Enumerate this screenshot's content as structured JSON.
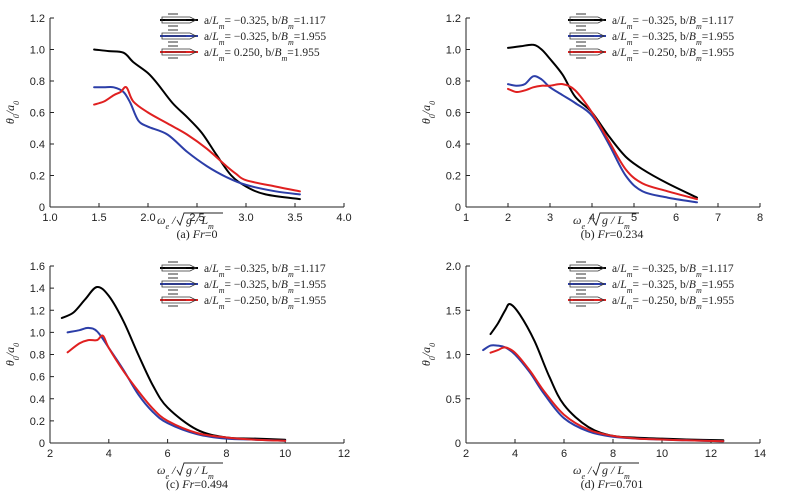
{
  "chart_data": [
    {
      "type": "line",
      "caption": "(a) Fr=0",
      "xlabel": "ω_e / √(g / L_m)",
      "ylabel": "θ_0 / a_0",
      "xlim": [
        1.0,
        4.0
      ],
      "ylim": [
        0.0,
        1.2
      ],
      "xticks": [
        "1.0",
        "1.5",
        "2.0",
        "2.5",
        "3.0",
        "3.5",
        "4.0"
      ],
      "yticks": [
        "0",
        "0.2",
        "0.4",
        "0.6",
        "0.8",
        "1.0",
        "1.2"
      ],
      "legend_position": "top-right",
      "series": [
        {
          "name": "a/L_m= −0.325, b/B_m=1.117",
          "color": "#000000",
          "x": [
            1.45,
            1.6,
            1.75,
            1.85,
            2.0,
            2.1,
            2.25,
            2.4,
            2.55,
            2.7,
            2.85,
            3.0,
            3.2,
            3.55
          ],
          "y": [
            1.0,
            0.99,
            0.98,
            0.92,
            0.85,
            0.78,
            0.66,
            0.57,
            0.47,
            0.33,
            0.2,
            0.13,
            0.08,
            0.05
          ]
        },
        {
          "name": "a/L_m= −0.325, b/B_m=1.955",
          "color": "#2c3ea8",
          "x": [
            1.45,
            1.55,
            1.65,
            1.75,
            1.82,
            1.9,
            2.0,
            2.2,
            2.4,
            2.6,
            2.8,
            3.0,
            3.3,
            3.55
          ],
          "y": [
            0.76,
            0.76,
            0.76,
            0.73,
            0.66,
            0.55,
            0.51,
            0.46,
            0.35,
            0.26,
            0.19,
            0.14,
            0.1,
            0.08
          ]
        },
        {
          "name": "a/L_m= 0.250, b/B_m=1.955",
          "color": "#e02020",
          "x": [
            1.45,
            1.55,
            1.65,
            1.72,
            1.78,
            1.85,
            2.0,
            2.2,
            2.4,
            2.6,
            2.8,
            2.9,
            3.0,
            3.3,
            3.55
          ],
          "y": [
            0.65,
            0.67,
            0.71,
            0.73,
            0.76,
            0.67,
            0.6,
            0.53,
            0.46,
            0.37,
            0.26,
            0.21,
            0.17,
            0.13,
            0.1
          ]
        }
      ]
    },
    {
      "type": "line",
      "caption": "(b) Fr=0.234",
      "xlabel": "ω_e / √(g / L_m)",
      "ylabel": "θ_0 / a_0",
      "xlim": [
        1,
        8
      ],
      "ylim": [
        0.0,
        1.2
      ],
      "xticks": [
        "1",
        "2",
        "3",
        "4",
        "5",
        "6",
        "7",
        "8"
      ],
      "yticks": [
        "0",
        "0.2",
        "0.4",
        "0.6",
        "0.8",
        "1.0",
        "1.2"
      ],
      "legend_position": "top-right",
      "series": [
        {
          "name": "a/L_m= −0.325, b/B_m=1.117",
          "color": "#000000",
          "x": [
            2.0,
            2.3,
            2.6,
            2.8,
            3.0,
            3.3,
            3.6,
            4.0,
            4.4,
            4.8,
            5.2,
            5.8,
            6.5
          ],
          "y": [
            1.01,
            1.02,
            1.03,
            1.0,
            0.94,
            0.84,
            0.7,
            0.6,
            0.45,
            0.32,
            0.24,
            0.15,
            0.06
          ]
        },
        {
          "name": "a/L_m= −0.325, b/B_m=1.955",
          "color": "#2c3ea8",
          "x": [
            2.0,
            2.2,
            2.4,
            2.6,
            2.8,
            3.0,
            3.3,
            3.6,
            4.0,
            4.4,
            4.8,
            5.2,
            5.8,
            6.5
          ],
          "y": [
            0.78,
            0.77,
            0.78,
            0.83,
            0.81,
            0.76,
            0.71,
            0.66,
            0.58,
            0.4,
            0.2,
            0.1,
            0.06,
            0.03
          ]
        },
        {
          "name": "a/L_m= −0.250, b/B_m=1.955",
          "color": "#e02020",
          "x": [
            2.0,
            2.2,
            2.4,
            2.6,
            2.8,
            3.0,
            3.3,
            3.6,
            4.0,
            4.4,
            4.8,
            5.2,
            5.8,
            6.5
          ],
          "y": [
            0.75,
            0.73,
            0.74,
            0.76,
            0.77,
            0.77,
            0.78,
            0.74,
            0.6,
            0.42,
            0.24,
            0.15,
            0.1,
            0.05
          ]
        }
      ]
    },
    {
      "type": "line",
      "caption": "(c) Fr=0.494",
      "xlabel": "ω_e / √(g / L_m)",
      "ylabel": "θ_0 / a_0",
      "xlim": [
        2,
        12
      ],
      "ylim": [
        0.0,
        1.6
      ],
      "xticks": [
        "2",
        "4",
        "6",
        "8",
        "10",
        "12"
      ],
      "yticks": [
        "0",
        "0.2",
        "0.4",
        "0.6",
        "0.8",
        "1.0",
        "1.2",
        "1.4",
        "1.6"
      ],
      "legend_position": "top-right",
      "series": [
        {
          "name": "a/L_m= −0.325, b/B_m=1.117",
          "color": "#000000",
          "x": [
            2.4,
            2.8,
            3.2,
            3.6,
            4.0,
            4.5,
            5.0,
            5.5,
            6.0,
            7.0,
            8.0,
            9.0,
            10.0
          ],
          "y": [
            1.13,
            1.18,
            1.3,
            1.41,
            1.33,
            1.1,
            0.8,
            0.52,
            0.32,
            0.12,
            0.05,
            0.04,
            0.03
          ]
        },
        {
          "name": "a/L_m= −0.325, b/B_m=1.955",
          "color": "#2c3ea8",
          "x": [
            2.6,
            3.0,
            3.3,
            3.6,
            4.0,
            4.5,
            5.0,
            5.5,
            6.0,
            7.0,
            8.0,
            9.0,
            10.0
          ],
          "y": [
            1.0,
            1.02,
            1.04,
            1.01,
            0.86,
            0.66,
            0.44,
            0.28,
            0.18,
            0.08,
            0.04,
            0.03,
            0.02
          ]
        },
        {
          "name": "a/L_m= −0.250, b/B_m=1.955",
          "color": "#e02020",
          "x": [
            2.6,
            3.0,
            3.3,
            3.6,
            3.8,
            4.0,
            4.5,
            5.0,
            5.5,
            6.0,
            7.0,
            8.0,
            9.0,
            10.0
          ],
          "y": [
            0.82,
            0.9,
            0.93,
            0.93,
            0.97,
            0.86,
            0.65,
            0.47,
            0.31,
            0.2,
            0.09,
            0.05,
            0.03,
            0.02
          ]
        }
      ]
    },
    {
      "type": "line",
      "caption": "(d) Fr=0.701",
      "xlabel": "ω_e / √(g / L_m)",
      "ylabel": "θ_0 / a_0",
      "xlim": [
        2,
        14
      ],
      "ylim": [
        0.0,
        2.0
      ],
      "xticks": [
        "2",
        "4",
        "6",
        "8",
        "10",
        "12",
        "14"
      ],
      "yticks": [
        "0",
        "0.5",
        "1.0",
        "1.5",
        "2.0"
      ],
      "legend_position": "top-right",
      "series": [
        {
          "name": "a/L_m= −0.325, b/B_m=1.117",
          "color": "#000000",
          "x": [
            3.0,
            3.3,
            3.6,
            3.8,
            4.2,
            4.8,
            5.4,
            6.0,
            7.0,
            8.0,
            9.0,
            10.0,
            11.0,
            12.5
          ],
          "y": [
            1.23,
            1.35,
            1.5,
            1.57,
            1.45,
            1.15,
            0.75,
            0.43,
            0.18,
            0.08,
            0.06,
            0.05,
            0.04,
            0.03
          ]
        },
        {
          "name": "a/L_m= −0.325, b/B_m=1.955",
          "color": "#2c3ea8",
          "x": [
            2.7,
            3.0,
            3.3,
            3.6,
            4.0,
            4.6,
            5.2,
            6.0,
            7.0,
            8.0,
            9.0,
            10.0,
            11.0,
            12.5
          ],
          "y": [
            1.05,
            1.1,
            1.1,
            1.08,
            1.0,
            0.8,
            0.55,
            0.28,
            0.13,
            0.07,
            0.05,
            0.04,
            0.03,
            0.02
          ]
        },
        {
          "name": "a/L_m= −0.250, b/B_m=1.955",
          "color": "#e02020",
          "x": [
            3.0,
            3.3,
            3.6,
            4.0,
            4.6,
            5.2,
            6.0,
            7.0,
            8.0,
            9.0,
            10.0,
            11.0,
            12.5
          ],
          "y": [
            1.02,
            1.05,
            1.08,
            1.02,
            0.82,
            0.58,
            0.32,
            0.15,
            0.08,
            0.05,
            0.04,
            0.03,
            0.02
          ]
        }
      ]
    }
  ]
}
